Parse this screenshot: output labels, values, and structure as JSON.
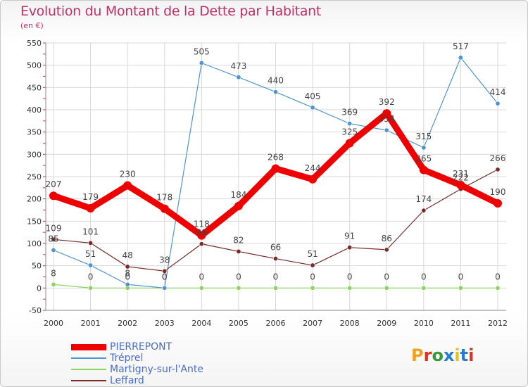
{
  "chart_data": {
    "type": "line",
    "title": "Evolution du Montant de la Dette par Habitant",
    "unit_label": "(en €)",
    "ylim": [
      -50,
      550
    ],
    "y_ticks": [
      -50,
      0,
      50,
      100,
      150,
      200,
      250,
      300,
      350,
      400,
      450,
      500,
      550
    ],
    "categories": [
      "2000",
      "2001",
      "2002",
      "2003",
      "2004",
      "2005",
      "2006",
      "2007",
      "2008",
      "2009",
      "2010",
      "2011",
      "2012"
    ],
    "grid": true,
    "legend_position": "bottom-left",
    "series": [
      {
        "name": "PIERREPONT",
        "color": "#ee0000",
        "values": [
          207,
          179,
          230,
          178,
          118,
          184,
          268,
          244,
          325,
          392,
          265,
          231,
          190
        ],
        "labels": [
          "207",
          "179",
          "230",
          "178",
          "118",
          "184",
          "268",
          "244",
          "325",
          "392",
          "265",
          "231",
          "190"
        ]
      },
      {
        "name": "Tréprel",
        "color": "#4f93cf",
        "values": [
          85,
          51,
          8,
          0,
          505,
          473,
          440,
          405,
          369,
          354,
          315,
          517,
          414
        ],
        "labels": [
          "85",
          "51",
          "8",
          "0",
          "505",
          "473",
          "440",
          "405",
          "369",
          "354",
          "315",
          "517",
          "414"
        ]
      },
      {
        "name": "Martigny-sur-l'Ante",
        "color": "#8cd45f",
        "values": [
          8,
          0,
          0,
          0,
          0,
          0,
          0,
          0,
          0,
          0,
          0,
          0,
          0
        ],
        "labels": [
          "8",
          "0",
          "0",
          "0",
          "0",
          "0",
          "0",
          "0",
          "0",
          "0",
          "0",
          "0",
          "0"
        ]
      },
      {
        "name": "Leffard",
        "color": "#7a2a2a",
        "values": [
          109,
          101,
          48,
          38,
          99,
          82,
          66,
          51,
          91,
          86,
          174,
          222,
          266
        ],
        "labels": [
          "109",
          "101",
          "48",
          "38",
          "99",
          "82",
          "66",
          "51",
          "91",
          "86",
          "174",
          "222",
          "266"
        ]
      }
    ]
  },
  "logo": {
    "text": "Proxiti",
    "colors": [
      "#f0a020",
      "#e03020",
      "#3a9a3a",
      "#2a7ad0",
      "#e8c020",
      "#2a7ad0",
      "#e03020"
    ]
  }
}
